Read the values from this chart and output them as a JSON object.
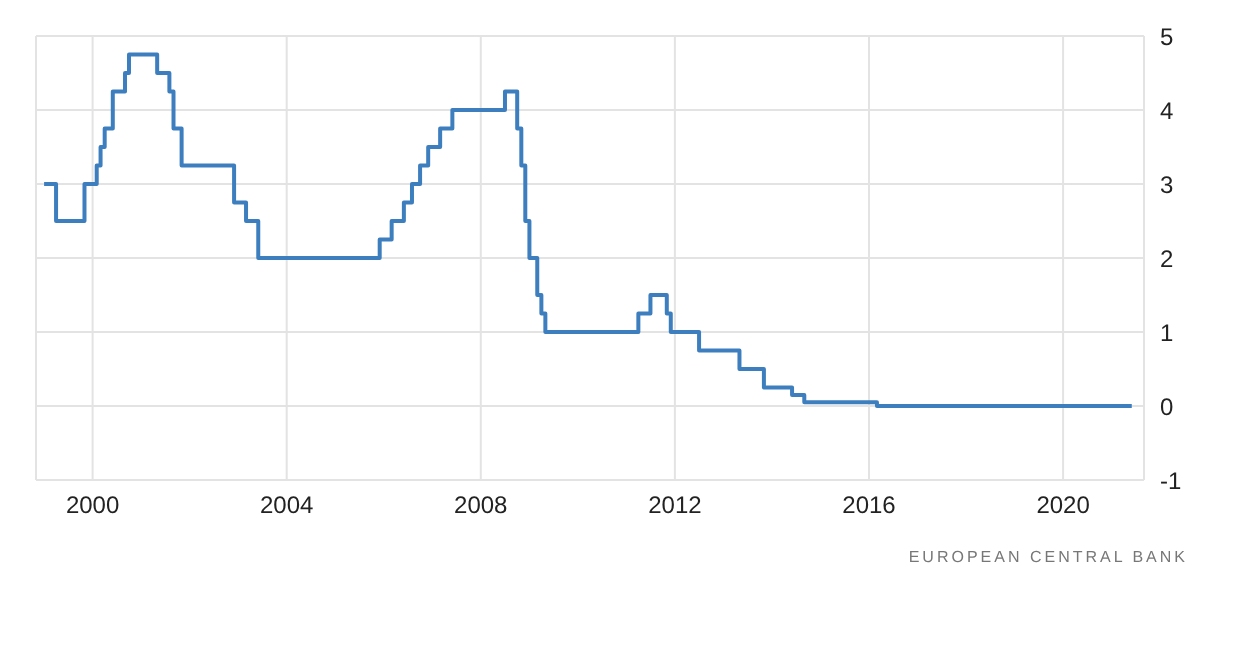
{
  "chart_data": {
    "type": "step",
    "x": [
      "1999-01",
      "1999-04",
      "1999-11",
      "2000-02",
      "2000-03",
      "2000-04",
      "2000-06",
      "2000-09",
      "2000-10",
      "2001-05",
      "2001-08",
      "2001-09",
      "2001-11",
      "2002-12",
      "2003-03",
      "2003-06",
      "2005-12",
      "2006-03",
      "2006-06",
      "2006-08",
      "2006-10",
      "2006-12",
      "2007-03",
      "2007-06",
      "2008-07",
      "2008-10",
      "2008-11",
      "2008-12",
      "2009-01",
      "2009-03",
      "2009-04",
      "2009-05",
      "2011-04",
      "2011-07",
      "2011-11",
      "2011-12",
      "2012-07",
      "2013-05",
      "2013-11",
      "2014-06",
      "2014-09",
      "2016-03",
      "2021-06"
    ],
    "series": [
      {
        "color": "#3d7ebf",
        "values": [
          3,
          2.5,
          3,
          3.25,
          3.5,
          3.75,
          4.25,
          4.5,
          4.75,
          4.5,
          4.25,
          3.75,
          3.25,
          2.75,
          2.5,
          2,
          2.25,
          2.5,
          2.75,
          3,
          3.25,
          3.5,
          3.75,
          4,
          4.25,
          3.75,
          3.25,
          2.5,
          2,
          1.5,
          1.25,
          1,
          1.25,
          1.5,
          1.25,
          1,
          0.75,
          0.5,
          0.25,
          0.15,
          0.05,
          0,
          0
        ]
      }
    ],
    "xlim": [
      "1998-11",
      "2021-09"
    ],
    "xticks": [
      {
        "value": "2000",
        "label": "2000"
      },
      {
        "value": "2004",
        "label": "2004"
      },
      {
        "value": "2008",
        "label": "2008"
      },
      {
        "value": "2012",
        "label": "2012"
      },
      {
        "value": "2016",
        "label": "2016"
      },
      {
        "value": "2020",
        "label": "2020"
      }
    ],
    "ylim": [
      -1,
      5
    ],
    "yticks": [
      -1,
      0,
      1,
      2,
      3,
      4,
      5
    ],
    "grid": true,
    "annotations": [
      "EUROPEAN CENTRAL BANK"
    ]
  }
}
